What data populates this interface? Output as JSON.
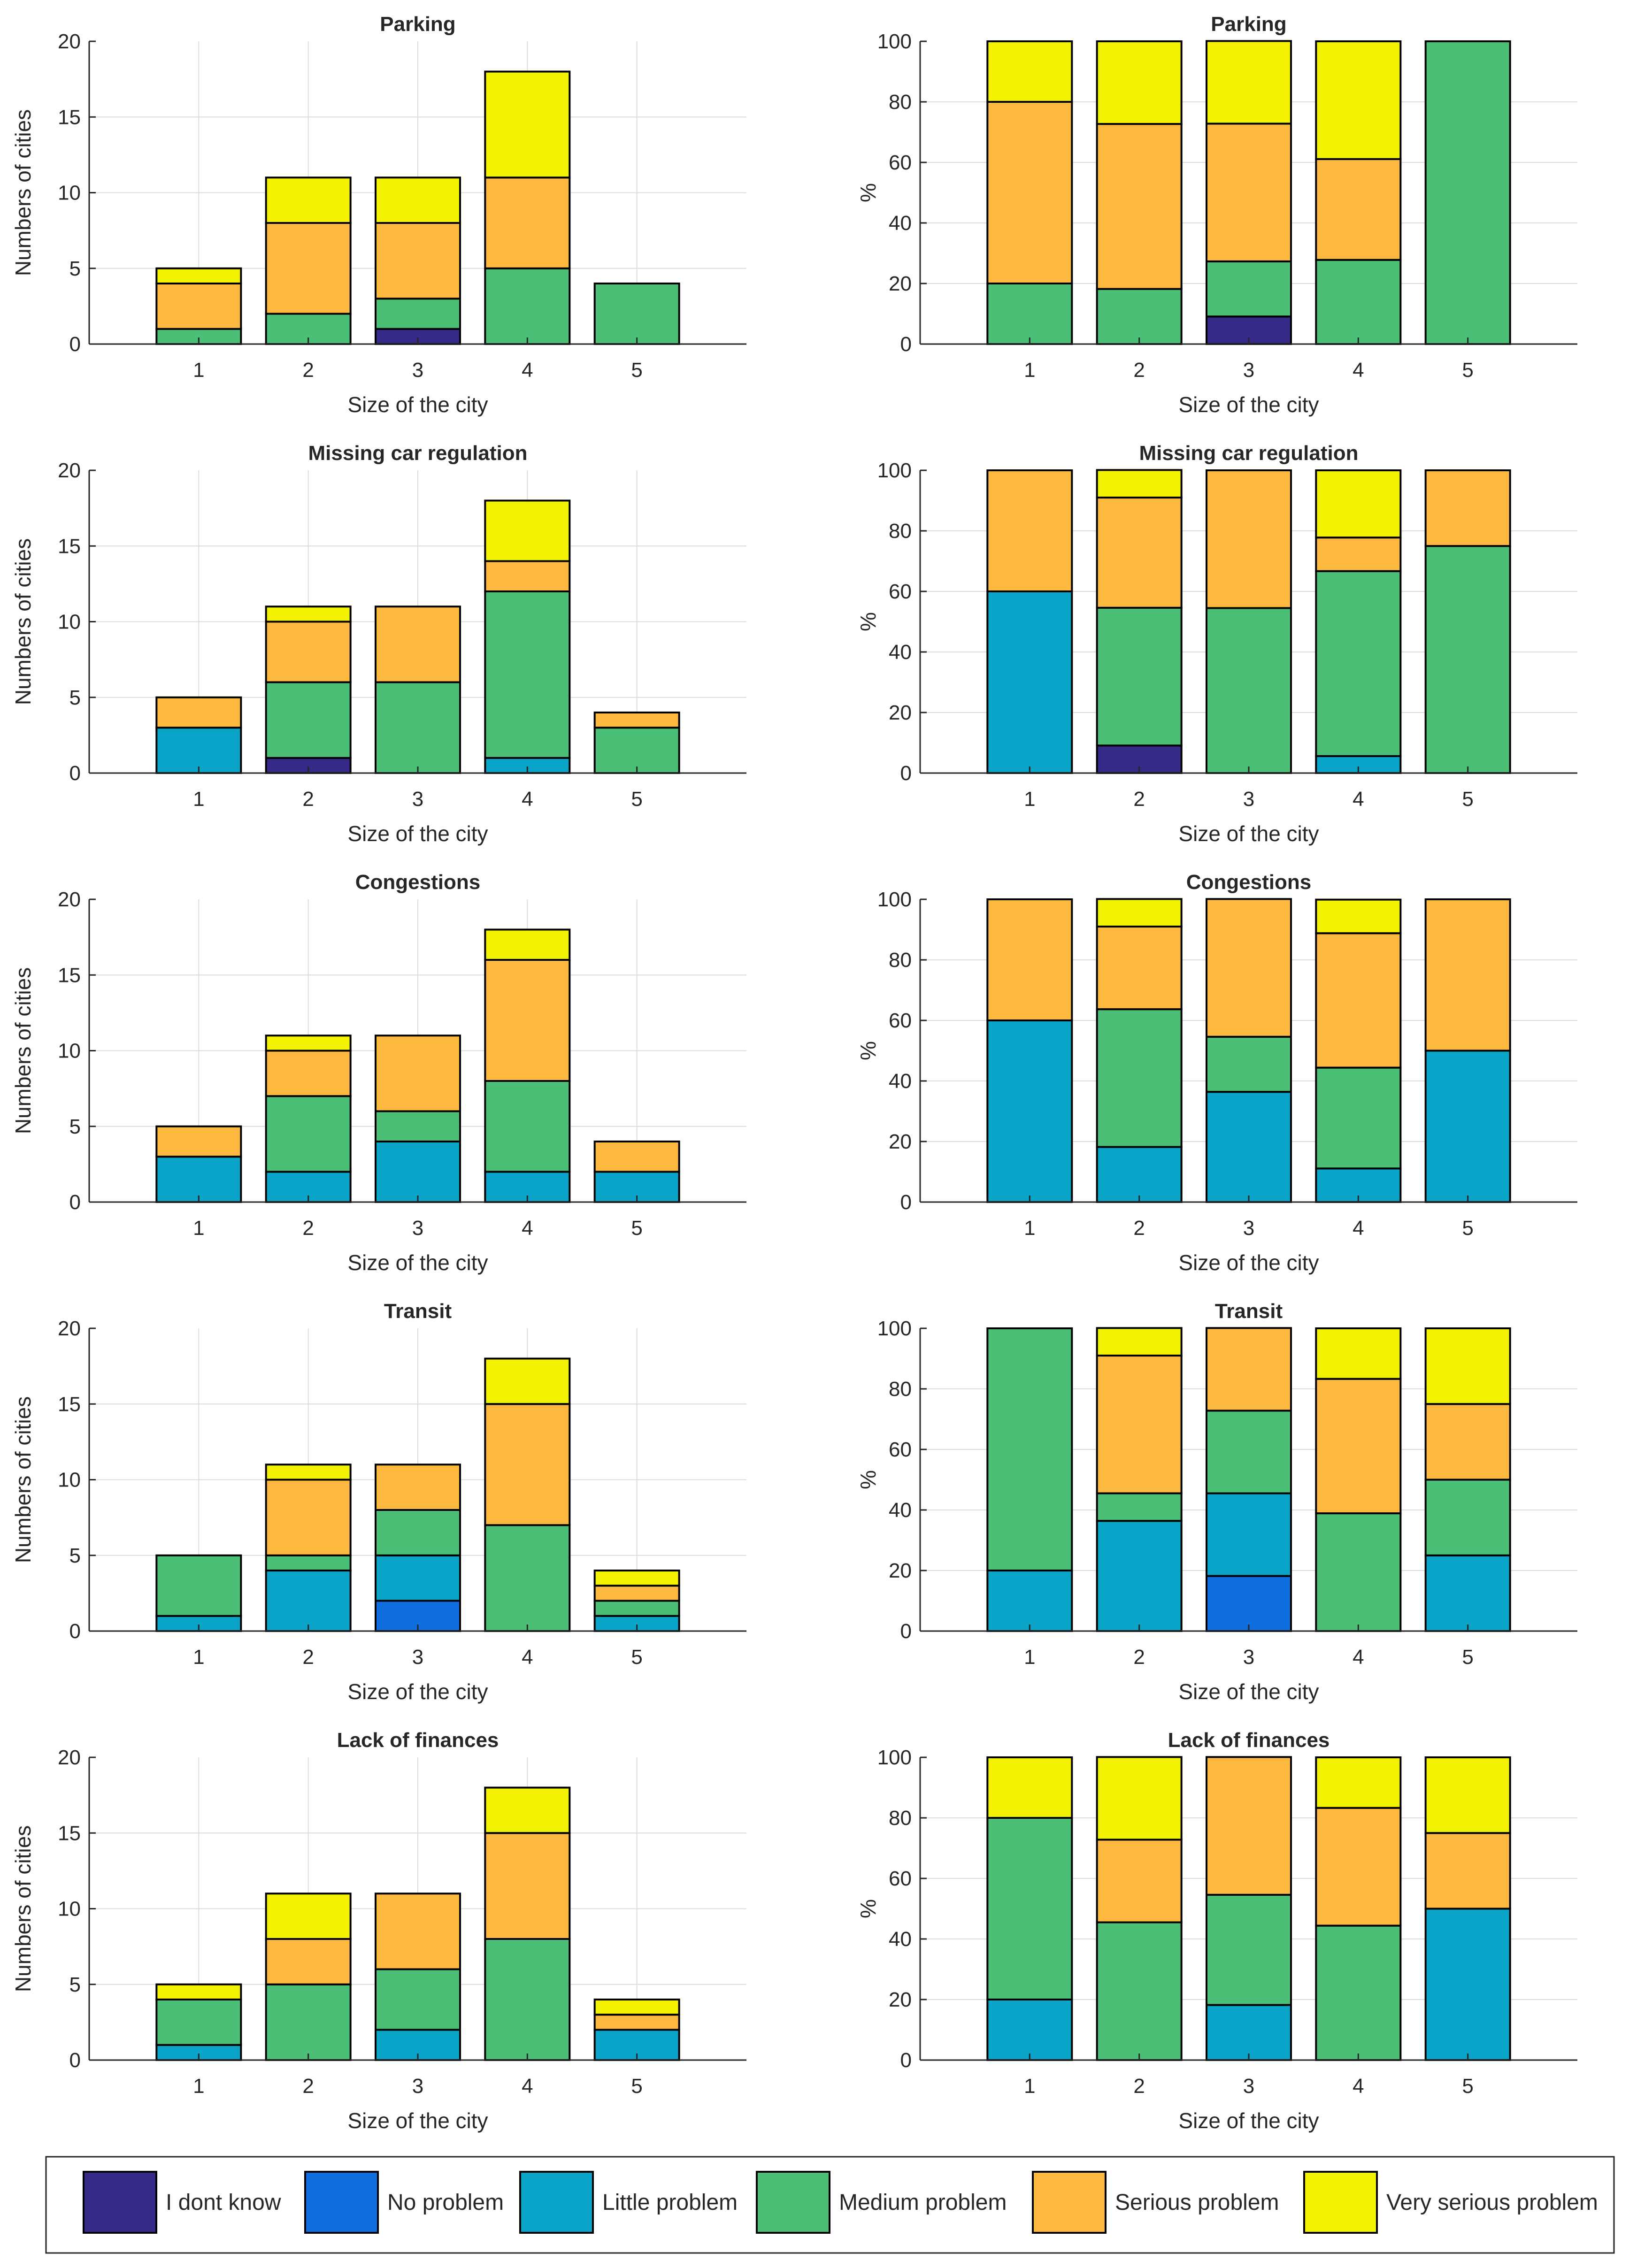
{
  "colors": {
    "I dont know": "#352a87",
    "No problem": "#0f6fde",
    "Little problem": "#0aa4c8",
    "Medium problem": "#4cbf77",
    "Serious problem": "#fdb93f",
    "Very serious problem": "#f3f200",
    "grid": "#dcdcdc",
    "axis": "#262626"
  },
  "legend": {
    "items": [
      "I dont know",
      "No problem",
      "Little problem",
      "Medium problem",
      "Serious problem",
      "Very serious problem"
    ]
  },
  "chart_data": [
    {
      "type": "bar",
      "stacked": true,
      "title": "Parking",
      "xlabel": "Size of the city",
      "ylabel": "Numbers of cities",
      "ylim": [
        0,
        20
      ],
      "yticks": [
        0,
        5,
        10,
        15,
        20
      ],
      "grid": true,
      "categories": [
        "1",
        "2",
        "3",
        "4",
        "5"
      ],
      "series": [
        {
          "name": "I dont know",
          "values": [
            0,
            0,
            1,
            0,
            0
          ]
        },
        {
          "name": "No problem",
          "values": [
            0,
            0,
            0,
            0,
            0
          ]
        },
        {
          "name": "Little problem",
          "values": [
            0,
            0,
            0,
            0,
            0
          ]
        },
        {
          "name": "Medium problem",
          "values": [
            1,
            2,
            2,
            5,
            4
          ]
        },
        {
          "name": "Serious problem",
          "values": [
            3,
            6,
            5,
            6,
            0
          ]
        },
        {
          "name": "Very serious problem",
          "values": [
            1,
            3,
            3,
            7,
            0
          ]
        }
      ]
    },
    {
      "type": "bar",
      "stacked": true,
      "title": "Parking",
      "xlabel": "Size of the city",
      "ylabel": "%",
      "ylim": [
        0,
        100
      ],
      "yticks": [
        0,
        20,
        40,
        60,
        80,
        100
      ],
      "grid": true,
      "categories": [
        "1",
        "2",
        "3",
        "4",
        "5"
      ],
      "series": [
        {
          "name": "I dont know",
          "values": [
            0,
            0,
            9.1,
            0,
            0
          ]
        },
        {
          "name": "No problem",
          "values": [
            0,
            0,
            0,
            0,
            0
          ]
        },
        {
          "name": "Little problem",
          "values": [
            0,
            0,
            0,
            0,
            0
          ]
        },
        {
          "name": "Medium problem",
          "values": [
            20,
            18.2,
            18.2,
            27.8,
            100
          ]
        },
        {
          "name": "Serious problem",
          "values": [
            60,
            54.5,
            45.5,
            33.3,
            0
          ]
        },
        {
          "name": "Very serious problem",
          "values": [
            20,
            27.3,
            27.3,
            38.9,
            0
          ]
        }
      ]
    },
    {
      "type": "bar",
      "stacked": true,
      "title": "Missing car regulation",
      "xlabel": "Size of the city",
      "ylabel": "Numbers of cities",
      "ylim": [
        0,
        20
      ],
      "yticks": [
        0,
        5,
        10,
        15,
        20
      ],
      "grid": true,
      "categories": [
        "1",
        "2",
        "3",
        "4",
        "5"
      ],
      "series": [
        {
          "name": "I dont know",
          "values": [
            0,
            1,
            0,
            0,
            0
          ]
        },
        {
          "name": "No problem",
          "values": [
            0,
            0,
            0,
            0,
            0
          ]
        },
        {
          "name": "Little problem",
          "values": [
            3,
            0,
            0,
            1,
            0
          ]
        },
        {
          "name": "Medium problem",
          "values": [
            0,
            5,
            6,
            11,
            3
          ]
        },
        {
          "name": "Serious problem",
          "values": [
            2,
            4,
            5,
            2,
            1
          ]
        },
        {
          "name": "Very serious problem",
          "values": [
            0,
            1,
            0,
            4,
            0
          ]
        }
      ]
    },
    {
      "type": "bar",
      "stacked": true,
      "title": "Missing car regulation",
      "xlabel": "Size of the city",
      "ylabel": "%",
      "ylim": [
        0,
        100
      ],
      "yticks": [
        0,
        20,
        40,
        60,
        80,
        100
      ],
      "grid": true,
      "categories": [
        "1",
        "2",
        "3",
        "4",
        "5"
      ],
      "series": [
        {
          "name": "I dont know",
          "values": [
            0,
            9.1,
            0,
            0,
            0
          ]
        },
        {
          "name": "No problem",
          "values": [
            0,
            0,
            0,
            0,
            0
          ]
        },
        {
          "name": "Little problem",
          "values": [
            60,
            0,
            0,
            5.6,
            0
          ]
        },
        {
          "name": "Medium problem",
          "values": [
            0,
            45.5,
            54.5,
            61.1,
            75
          ]
        },
        {
          "name": "Serious problem",
          "values": [
            40,
            36.4,
            45.5,
            11.1,
            25
          ]
        },
        {
          "name": "Very serious problem",
          "values": [
            0,
            9.1,
            0,
            22.2,
            0
          ]
        }
      ]
    },
    {
      "type": "bar",
      "stacked": true,
      "title": "Congestions",
      "xlabel": "Size of the city",
      "ylabel": "Numbers of cities",
      "ylim": [
        0,
        20
      ],
      "yticks": [
        0,
        5,
        10,
        15,
        20
      ],
      "grid": true,
      "categories": [
        "1",
        "2",
        "3",
        "4",
        "5"
      ],
      "series": [
        {
          "name": "I dont know",
          "values": [
            0,
            0,
            0,
            0,
            0
          ]
        },
        {
          "name": "No problem",
          "values": [
            0,
            0,
            0,
            0,
            0
          ]
        },
        {
          "name": "Little problem",
          "values": [
            3,
            2,
            4,
            2,
            2
          ]
        },
        {
          "name": "Medium problem",
          "values": [
            0,
            5,
            2,
            6,
            0
          ]
        },
        {
          "name": "Serious problem",
          "values": [
            2,
            3,
            5,
            8,
            2
          ]
        },
        {
          "name": "Very serious problem",
          "values": [
            0,
            1,
            0,
            2,
            0
          ]
        }
      ]
    },
    {
      "type": "bar",
      "stacked": true,
      "title": "Congestions",
      "xlabel": "Size of the city",
      "ylabel": "%",
      "ylim": [
        0,
        100
      ],
      "yticks": [
        0,
        20,
        40,
        60,
        80,
        100
      ],
      "grid": true,
      "categories": [
        "1",
        "2",
        "3",
        "4",
        "5"
      ],
      "series": [
        {
          "name": "I dont know",
          "values": [
            0,
            0,
            0,
            0,
            0
          ]
        },
        {
          "name": "No problem",
          "values": [
            0,
            0,
            0,
            0,
            0
          ]
        },
        {
          "name": "Little problem",
          "values": [
            60,
            18.2,
            36.4,
            11.1,
            50
          ]
        },
        {
          "name": "Medium problem",
          "values": [
            0,
            45.5,
            18.2,
            33.3,
            0
          ]
        },
        {
          "name": "Serious problem",
          "values": [
            40,
            27.3,
            45.5,
            44.4,
            50
          ]
        },
        {
          "name": "Very serious problem",
          "values": [
            0,
            9.1,
            0,
            11.1,
            0
          ]
        }
      ]
    },
    {
      "type": "bar",
      "stacked": true,
      "title": "Transit",
      "xlabel": "Size of the city",
      "ylabel": "Numbers of cities",
      "ylim": [
        0,
        20
      ],
      "yticks": [
        0,
        5,
        10,
        15,
        20
      ],
      "grid": true,
      "categories": [
        "1",
        "2",
        "3",
        "4",
        "5"
      ],
      "series": [
        {
          "name": "I dont know",
          "values": [
            0,
            0,
            0,
            0,
            0
          ]
        },
        {
          "name": "No problem",
          "values": [
            0,
            0,
            2,
            0,
            0
          ]
        },
        {
          "name": "Little problem",
          "values": [
            1,
            4,
            3,
            0,
            1
          ]
        },
        {
          "name": "Medium problem",
          "values": [
            4,
            1,
            3,
            7,
            1
          ]
        },
        {
          "name": "Serious problem",
          "values": [
            0,
            5,
            3,
            8,
            1
          ]
        },
        {
          "name": "Very serious problem",
          "values": [
            0,
            1,
            0,
            3,
            1
          ]
        }
      ]
    },
    {
      "type": "bar",
      "stacked": true,
      "title": "Transit",
      "xlabel": "Size of the city",
      "ylabel": "%",
      "ylim": [
        0,
        100
      ],
      "yticks": [
        0,
        20,
        40,
        60,
        80,
        100
      ],
      "grid": true,
      "categories": [
        "1",
        "2",
        "3",
        "4",
        "5"
      ],
      "series": [
        {
          "name": "I dont know",
          "values": [
            0,
            0,
            0,
            0,
            0
          ]
        },
        {
          "name": "No problem",
          "values": [
            0,
            0,
            18.2,
            0,
            0
          ]
        },
        {
          "name": "Little problem",
          "values": [
            20,
            36.4,
            27.3,
            0,
            25
          ]
        },
        {
          "name": "Medium problem",
          "values": [
            80,
            9.1,
            27.3,
            38.9,
            25
          ]
        },
        {
          "name": "Serious problem",
          "values": [
            0,
            45.5,
            27.3,
            44.4,
            25
          ]
        },
        {
          "name": "Very serious problem",
          "values": [
            0,
            9.1,
            0,
            16.7,
            25
          ]
        }
      ]
    },
    {
      "type": "bar",
      "stacked": true,
      "title": "Lack of finances",
      "xlabel": "Size of the city",
      "ylabel": "Numbers of cities",
      "ylim": [
        0,
        20
      ],
      "yticks": [
        0,
        5,
        10,
        15,
        20
      ],
      "grid": true,
      "categories": [
        "1",
        "2",
        "3",
        "4",
        "5"
      ],
      "series": [
        {
          "name": "I dont know",
          "values": [
            0,
            0,
            0,
            0,
            0
          ]
        },
        {
          "name": "No problem",
          "values": [
            0,
            0,
            0,
            0,
            0
          ]
        },
        {
          "name": "Little problem",
          "values": [
            1,
            0,
            2,
            0,
            2
          ]
        },
        {
          "name": "Medium problem",
          "values": [
            3,
            5,
            4,
            8,
            0
          ]
        },
        {
          "name": "Serious problem",
          "values": [
            0,
            3,
            5,
            7,
            1
          ]
        },
        {
          "name": "Very serious problem",
          "values": [
            1,
            3,
            0,
            3,
            1
          ]
        }
      ]
    },
    {
      "type": "bar",
      "stacked": true,
      "title": "Lack of finances",
      "xlabel": "Size of the city",
      "ylabel": "%",
      "ylim": [
        0,
        100
      ],
      "yticks": [
        0,
        20,
        40,
        60,
        80,
        100
      ],
      "grid": true,
      "categories": [
        "1",
        "2",
        "3",
        "4",
        "5"
      ],
      "series": [
        {
          "name": "I dont know",
          "values": [
            0,
            0,
            0,
            0,
            0
          ]
        },
        {
          "name": "No problem",
          "values": [
            0,
            0,
            0,
            0,
            0
          ]
        },
        {
          "name": "Little problem",
          "values": [
            20,
            0,
            18.2,
            0,
            50
          ]
        },
        {
          "name": "Medium problem",
          "values": [
            60,
            45.5,
            36.4,
            44.4,
            0
          ]
        },
        {
          "name": "Serious problem",
          "values": [
            0,
            27.3,
            45.5,
            38.9,
            25
          ]
        },
        {
          "name": "Very serious problem",
          "values": [
            20,
            27.3,
            0,
            16.7,
            25
          ]
        }
      ]
    }
  ]
}
